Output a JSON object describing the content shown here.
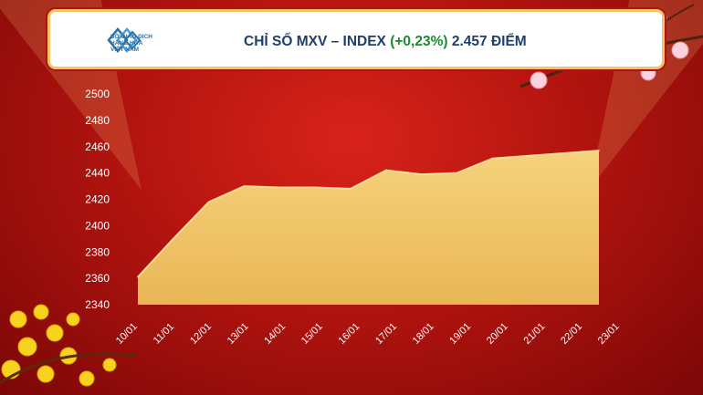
{
  "header": {
    "logo_lines": [
      "SỞ GIAO DỊCH",
      "HÀNG HÓA",
      "VIỆT NAM"
    ],
    "title_main": "CHỈ SỐ MXV – INDEX",
    "title_change": "(+0,23%)",
    "title_value": "2.457 ĐIỂM"
  },
  "colors": {
    "background": "#b3140f",
    "area_fill": "#f2c46a",
    "title_text": "#1f3f6e",
    "change_text": "#1d8a2e"
  },
  "chart_data": {
    "type": "area",
    "title": "CHỈ SỐ MXV – INDEX (+0,23%) 2.457 ĐIỂM",
    "xlabel": "",
    "ylabel": "",
    "categories": [
      "10/01",
      "11/01",
      "12/01",
      "13/01",
      "14/01",
      "15/01",
      "16/01",
      "17/01",
      "18/01",
      "19/01",
      "20/01",
      "21/01",
      "22/01",
      "23/01"
    ],
    "values": [
      2361,
      2390,
      2418,
      2430,
      2429,
      2429,
      2428,
      2442,
      2439,
      2440,
      2451,
      2453,
      2455,
      2457
    ],
    "ylim": [
      2340,
      2500
    ],
    "yticks": [
      2340,
      2360,
      2380,
      2400,
      2420,
      2440,
      2460,
      2480,
      2500
    ],
    "grid": false,
    "legend": "none"
  }
}
